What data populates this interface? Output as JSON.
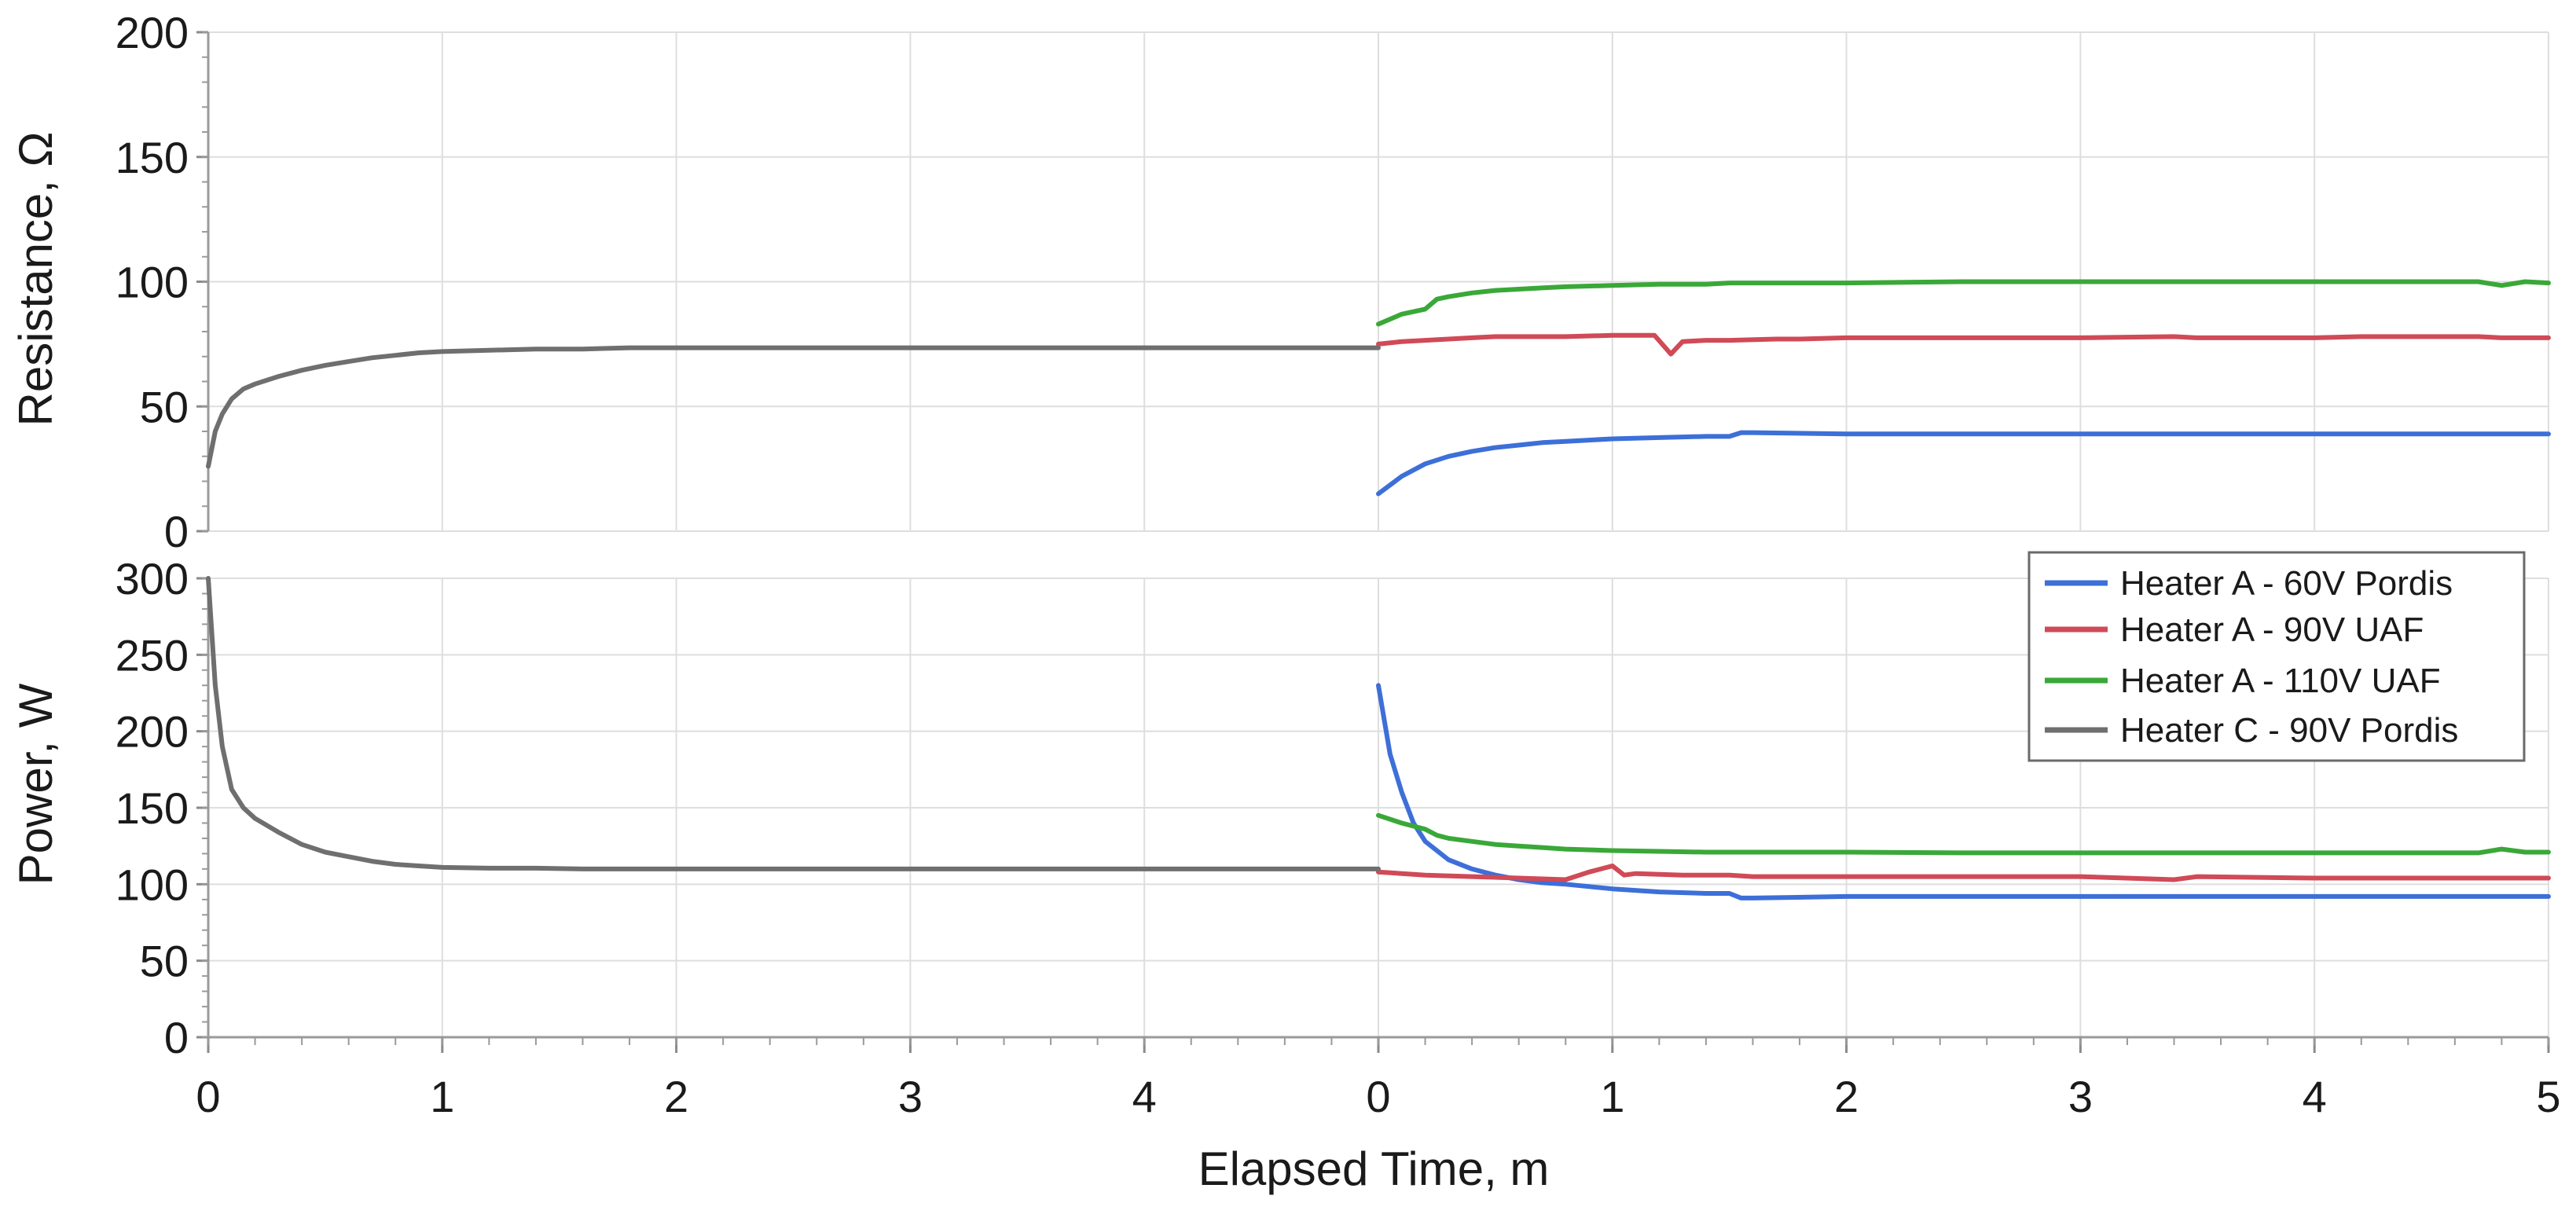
{
  "chart_data": {
    "type": "line",
    "xlabel": "Elapsed Time, m",
    "x_ticks": [
      0,
      1,
      2,
      3,
      4,
      5
    ],
    "x_segments": [
      {
        "id": "left",
        "xlim": [
          0,
          5
        ],
        "tick_labels": [
          "0",
          "1",
          "2",
          "3",
          "4"
        ]
      },
      {
        "id": "right",
        "xlim": [
          0,
          5
        ],
        "tick_labels": [
          "0",
          "1",
          "2",
          "3",
          "4",
          "5"
        ]
      }
    ],
    "panels": [
      {
        "id": "resistance",
        "ylabel": "Resistance, Ω",
        "ylim": [
          0,
          200
        ],
        "yticks": [
          0,
          50,
          100,
          150,
          200
        ],
        "series": [
          {
            "key": "a60",
            "segment": "right",
            "x": [
              0,
              0.1,
              0.2,
              0.3,
              0.4,
              0.5,
              0.6,
              0.7,
              0.8,
              0.9,
              1.0,
              1.2,
              1.4,
              1.5,
              1.55,
              1.6,
              2.0,
              3.0,
              4.0,
              5.0
            ],
            "y": [
              15,
              22,
              27,
              30,
              32,
              33.5,
              34.5,
              35.5,
              36,
              36.5,
              37,
              37.5,
              38,
              38,
              39.5,
              39.5,
              39,
              39,
              39,
              39
            ]
          },
          {
            "key": "a90",
            "segment": "right",
            "x": [
              0,
              0.1,
              0.2,
              0.3,
              0.4,
              0.5,
              0.8,
              1.0,
              1.1,
              1.18,
              1.25,
              1.3,
              1.4,
              1.5,
              1.7,
              1.8,
              2.0,
              2.1,
              2.5,
              3.0,
              3.4,
              3.5,
              4.0,
              4.2,
              4.5,
              4.7,
              4.8,
              4.9,
              5.0
            ],
            "y": [
              75,
              76,
              76.5,
              77,
              77.5,
              78,
              78,
              78.5,
              78.5,
              78.5,
              71,
              76,
              76.5,
              76.5,
              77,
              77,
              77.5,
              77.5,
              77.5,
              77.5,
              78,
              77.5,
              77.5,
              78,
              78,
              78,
              77.5,
              77.5,
              77.5
            ]
          },
          {
            "key": "a110",
            "segment": "right",
            "x": [
              0,
              0.1,
              0.2,
              0.25,
              0.3,
              0.4,
              0.5,
              0.6,
              0.7,
              0.8,
              1.0,
              1.2,
              1.4,
              1.5,
              1.6,
              1.8,
              2.0,
              2.5,
              3.0,
              4.0,
              4.7,
              4.8,
              4.9,
              5.0
            ],
            "y": [
              83,
              87,
              89,
              93,
              94,
              95.5,
              96.5,
              97,
              97.5,
              98,
              98.5,
              99,
              99,
              99.5,
              99.5,
              99.5,
              99.5,
              100,
              100,
              100,
              100,
              98.5,
              100,
              99.5
            ]
          },
          {
            "key": "c90",
            "segment": "left",
            "x": [
              0,
              0.03,
              0.06,
              0.1,
              0.15,
              0.2,
              0.3,
              0.4,
              0.5,
              0.6,
              0.7,
              0.8,
              0.9,
              1.0,
              1.2,
              1.4,
              1.6,
              1.8,
              2.0,
              2.5,
              3.0,
              3.5,
              4.0,
              4.5,
              5.0
            ],
            "y": [
              26,
              40,
              47,
              53,
              57,
              59,
              62,
              64.5,
              66.5,
              68,
              69.5,
              70.5,
              71.5,
              72,
              72.5,
              73,
              73,
              73.5,
              73.5,
              73.5,
              73.5,
              73.5,
              73.5,
              73.5,
              73.5
            ]
          }
        ]
      },
      {
        "id": "power",
        "ylabel": "Power, W",
        "ylim": [
          0,
          300
        ],
        "yticks": [
          0,
          50,
          100,
          150,
          200,
          250,
          300
        ],
        "series": [
          {
            "key": "a60",
            "segment": "right",
            "x": [
              0,
              0.05,
              0.1,
              0.15,
              0.2,
              0.3,
              0.4,
              0.5,
              0.6,
              0.7,
              0.8,
              1.0,
              1.2,
              1.4,
              1.5,
              1.55,
              1.6,
              2.0,
              3.0,
              4.0,
              5.0
            ],
            "y": [
              230,
              185,
              160,
              140,
              128,
              116,
              110,
              106,
              103,
              101,
              100,
              97,
              95,
              94,
              94,
              91,
              91,
              92,
              92,
              92,
              92
            ]
          },
          {
            "key": "a90",
            "segment": "right",
            "x": [
              0,
              0.1,
              0.2,
              0.4,
              0.6,
              0.8,
              0.9,
              1.0,
              1.05,
              1.1,
              1.3,
              1.5,
              1.6,
              1.8,
              2.0,
              2.5,
              3.0,
              3.4,
              3.5,
              4.0,
              4.5,
              5.0
            ],
            "y": [
              108,
              107,
              106,
              105,
              104,
              103,
              108,
              112,
              106,
              107,
              106,
              106,
              105,
              105,
              105,
              105,
              105,
              103,
              105,
              104,
              104,
              104
            ]
          },
          {
            "key": "a110",
            "segment": "right",
            "x": [
              0,
              0.1,
              0.2,
              0.25,
              0.3,
              0.4,
              0.5,
              0.6,
              0.7,
              0.8,
              1.0,
              1.2,
              1.4,
              1.6,
              1.8,
              2.0,
              2.5,
              3.0,
              4.0,
              4.7,
              4.8,
              4.9,
              5.0
            ],
            "y": [
              145,
              140,
              136,
              132,
              130,
              128,
              126,
              125,
              124,
              123,
              122,
              121.5,
              121,
              121,
              121,
              121,
              120.5,
              120.5,
              120.5,
              120.5,
              123,
              121,
              121
            ]
          },
          {
            "key": "c90",
            "segment": "left",
            "x": [
              0,
              0.03,
              0.06,
              0.1,
              0.15,
              0.2,
              0.3,
              0.4,
              0.5,
              0.6,
              0.7,
              0.8,
              0.9,
              1.0,
              1.2,
              1.4,
              1.6,
              1.8,
              2.0,
              2.5,
              3.0,
              3.5,
              4.0,
              4.5,
              5.0
            ],
            "y": [
              300,
              230,
              190,
              162,
              150,
              143,
              134,
              126,
              121,
              118,
              115,
              113,
              112,
              111,
              110.5,
              110.5,
              110,
              110,
              110,
              110,
              110,
              110,
              110,
              110,
              110
            ]
          }
        ]
      }
    ],
    "legend": {
      "position": "right",
      "entries": [
        {
          "key": "a60",
          "label": "Heater A - 60V Pordis",
          "color": "#3d6fd8"
        },
        {
          "key": "a90",
          "label": "Heater A - 90V UAF",
          "color": "#d04a57"
        },
        {
          "key": "a110",
          "label": "Heater A - 110V UAF",
          "color": "#3aa838"
        },
        {
          "key": "c90",
          "label": "Heater C - 90V Pordis",
          "color": "#6f6f6f"
        }
      ]
    },
    "grid": true
  }
}
